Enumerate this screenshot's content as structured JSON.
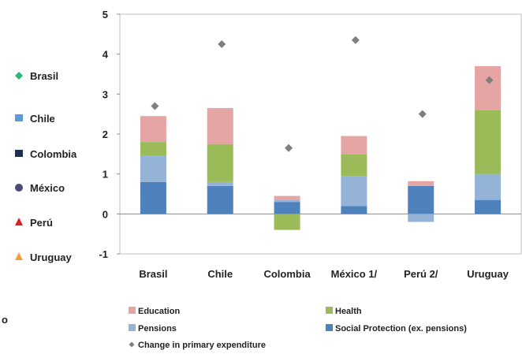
{
  "chart_data": {
    "type": "bar",
    "stacked": true,
    "categories": [
      "Brasil",
      "Chile",
      "Colombia",
      "México 1/",
      "Perú 2/",
      "Uruguay"
    ],
    "ylim": [
      -1,
      5
    ],
    "yticks": [
      -1,
      0,
      1,
      2,
      3,
      4,
      5
    ],
    "grid": false,
    "series": [
      {
        "name": "Social Protection (ex. pensions)",
        "color": "#4f81bd",
        "values": [
          0.8,
          0.7,
          0.3,
          0.2,
          0.7,
          0.35
        ]
      },
      {
        "name": "Pensions",
        "color": "#95b3d7",
        "values": [
          0.65,
          0.1,
          0.05,
          0.75,
          -0.2,
          0.65
        ]
      },
      {
        "name": "Health",
        "color": "#9bbb59",
        "values": [
          0.35,
          0.95,
          -0.4,
          0.55,
          0.0,
          1.6
        ]
      },
      {
        "name": "Education",
        "color": "#e6a5a5",
        "values": [
          0.65,
          0.9,
          0.1,
          0.45,
          0.12,
          1.1
        ]
      }
    ],
    "markers": {
      "name": "Change in primary expenditure",
      "color": "#7f7f7f",
      "values": [
        2.7,
        4.25,
        1.65,
        4.35,
        2.5,
        3.35
      ]
    },
    "legend_position": "bottom",
    "legend_order": [
      "Education",
      "Health",
      "Pensions",
      "Social Protection (ex. pensions)",
      "Change in primary expenditure"
    ]
  },
  "side_legend": [
    {
      "label": "Brasil",
      "symbol": "diamond",
      "color": "#2bb673"
    },
    {
      "label": "Chile",
      "symbol": "square",
      "color": "#5b9bd5"
    },
    {
      "label": "Colombia",
      "symbol": "square",
      "color": "#1f2f4f"
    },
    {
      "label": "México",
      "symbol": "circle",
      "color": "#4e4a7a"
    },
    {
      "label": "Perú",
      "symbol": "triangle",
      "color": "#e02020"
    },
    {
      "label": "Uruguay",
      "symbol": "triangle",
      "color": "#f0a040"
    }
  ],
  "edge_fragments": [
    "o"
  ]
}
